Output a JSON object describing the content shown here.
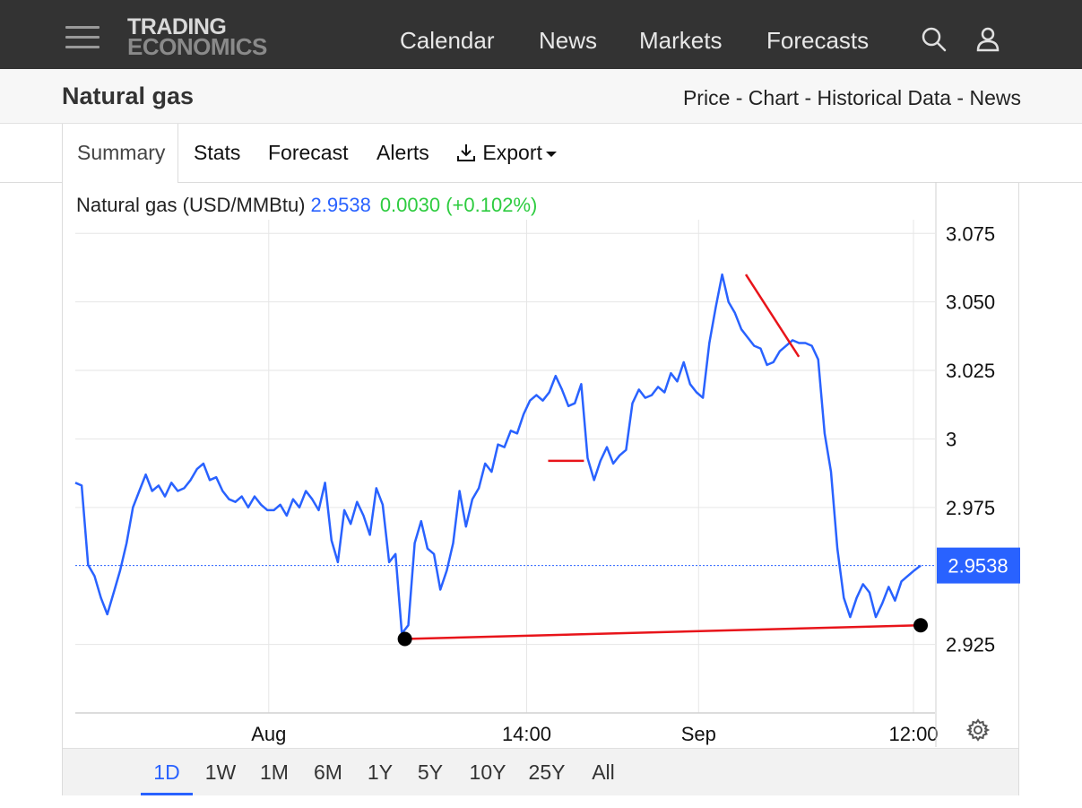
{
  "brand": {
    "line1": "TRADING",
    "line2": "ECONOMICS"
  },
  "nav": {
    "items": [
      "Calendar",
      "News",
      "Markets",
      "Forecasts"
    ]
  },
  "icons": {
    "menu": "hamburger-menu-icon",
    "search": "search-icon",
    "user": "user-icon",
    "export": "download-icon",
    "settings": "gear-icon"
  },
  "page": {
    "title": "Natural gas",
    "links": "Price - Chart - Historical Data - News"
  },
  "tabs": {
    "summary": "Summary",
    "stats": "Stats",
    "forecast": "Forecast",
    "alerts": "Alerts",
    "export": "Export"
  },
  "legend": {
    "name": "Natural gas (USD/MMBtu)",
    "price": "2.9538",
    "change": "0.0030 (+0.102%)"
  },
  "colors": {
    "line": "#2962ff",
    "drawing": "#e8141a",
    "price_tag": "#2962ff",
    "change_positive": "#2ecc40"
  },
  "ranges": [
    "1D",
    "1W",
    "1M",
    "6M",
    "1Y",
    "5Y",
    "10Y",
    "25Y",
    "All"
  ],
  "active_range": "1D",
  "chart_data": {
    "type": "line",
    "title": "Natural gas (USD/MMBtu)",
    "y_ticks": [
      "3.075",
      "3.050",
      "3.025",
      "3",
      "2.975",
      "2.925"
    ],
    "y_tick_values": [
      3.075,
      3.05,
      3.025,
      3.0,
      2.975,
      2.925
    ],
    "ylim": [
      2.9,
      3.08
    ],
    "x_tick_labels": [
      "Aug",
      "14:00",
      "Sep",
      "12:00"
    ],
    "x_tick_values": [
      13.5,
      31.5,
      43.5,
      58.5
    ],
    "xlim": [
      0,
      60
    ],
    "last_price": 2.9538,
    "last_price_label": "2.9538",
    "grid": true,
    "series": [
      {
        "values": [
          2.984,
          2.983,
          2.954,
          2.95,
          2.942,
          2.936,
          2.944,
          2.952,
          2.962,
          2.975,
          2.981,
          2.987,
          2.981,
          2.983,
          2.979,
          2.984,
          2.981,
          2.982,
          2.985,
          2.989,
          2.991,
          2.985,
          2.986,
          2.981,
          2.978,
          2.977,
          2.979,
          2.975,
          2.979,
          2.976,
          2.974,
          2.974,
          2.976,
          2.972,
          2.978,
          2.975,
          2.981,
          2.978,
          2.974,
          2.984,
          2.963,
          2.955,
          2.974,
          2.969,
          2.977,
          2.972,
          2.965,
          2.982,
          2.976,
          2.955,
          2.958,
          2.929,
          2.932,
          2.962,
          2.97,
          2.96,
          2.958,
          2.945,
          2.952,
          2.962,
          2.981,
          2.968,
          2.978,
          2.982,
          2.991,
          2.988,
          2.998,
          2.997,
          3.003,
          3.002,
          3.009,
          3.014,
          3.016,
          3.014,
          3.017,
          3.023,
          3.018,
          3.012,
          3.013,
          3.02,
          2.993,
          2.985,
          2.992,
          2.997,
          2.991,
          2.994,
          2.996,
          3.013,
          3.018,
          3.015,
          3.016,
          3.019,
          3.017,
          3.024,
          3.021,
          3.028,
          3.02,
          3.017,
          3.015,
          3.035,
          3.048,
          3.06,
          3.05,
          3.046,
          3.04,
          3.037,
          3.034,
          3.033,
          3.027,
          3.028,
          3.032,
          3.034,
          3.036,
          3.035,
          3.035,
          3.034,
          3.029,
          3.002,
          2.988,
          2.96,
          2.942,
          2.935,
          2.942,
          2.947,
          2.944,
          2.935,
          2.94,
          2.946,
          2.941,
          2.948,
          2.95,
          2.952,
          2.9538
        ]
      }
    ],
    "drawings": [
      {
        "type": "trendline",
        "from": [
          23.0,
          2.927
        ],
        "to": [
          59.0,
          2.932
        ],
        "endpoints": true
      },
      {
        "type": "trendline",
        "from": [
          46.8,
          3.06
        ],
        "to": [
          50.5,
          3.03
        ]
      },
      {
        "type": "hline",
        "from": [
          33.0,
          2.992
        ],
        "to": [
          35.5,
          2.992
        ]
      }
    ]
  }
}
